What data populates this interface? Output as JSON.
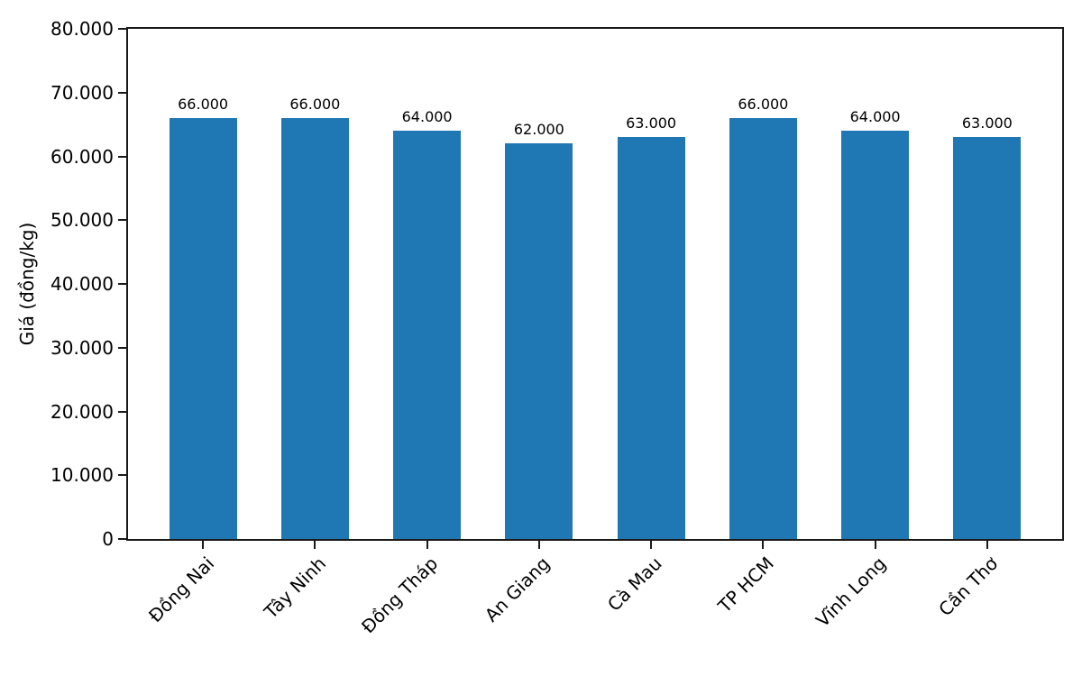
{
  "chart_data": {
    "type": "bar",
    "title": "",
    "ylabel": "Giá (đồng/kg)",
    "xlabel": "",
    "categories": [
      "Đồng Nai",
      "Tây Ninh",
      "Đồng Tháp",
      "An Giang",
      "Cà Mau",
      "TP HCM",
      "Vĩnh Long",
      "Cần Thơ"
    ],
    "values": [
      66000,
      66000,
      64000,
      62000,
      63000,
      66000,
      64000,
      63000
    ],
    "bar_value_labels": [
      "66.000",
      "66.000",
      "64.000",
      "62.000",
      "63.000",
      "66.000",
      "64.000",
      "63.000"
    ],
    "ytick_values": [
      0,
      10000,
      20000,
      30000,
      40000,
      50000,
      60000,
      70000,
      80000
    ],
    "ytick_labels": [
      "0",
      "10.000",
      "20.000",
      "30.000",
      "40.000",
      "50.000",
      "60.000",
      "70.000",
      "80.000"
    ],
    "ylim": [
      0,
      80000
    ],
    "bar_color": "#1f77b4",
    "axis_color": "#1a1a1a",
    "grid": false,
    "legend": "none",
    "x_tick_label_rotation": 45
  }
}
